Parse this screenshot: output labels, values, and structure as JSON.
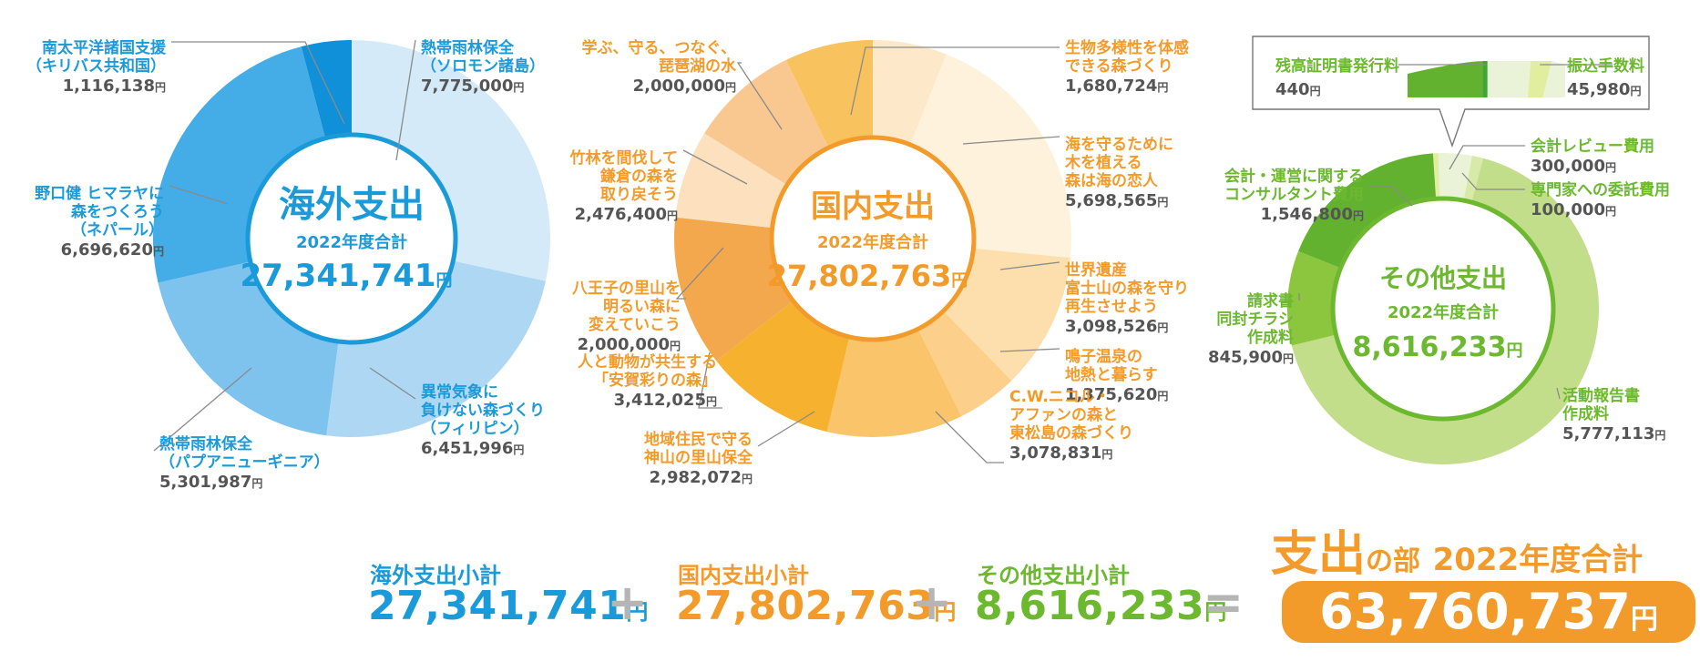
{
  "summary": {
    "overseas_label": "海外支出小計",
    "overseas_value": "27,341,741",
    "domestic_label": "国内支出小計",
    "domestic_value": "27,802,763",
    "other_label": "その他支出小計",
    "other_value": "8,616,233",
    "yen": "円",
    "plus": "+",
    "equals": "=",
    "total_title_main": "支出",
    "total_title_particle": "の部",
    "total_title_year": "2022年度合計",
    "total_value": "63,760,737"
  },
  "colors": {
    "overseas": "#1a9ad9",
    "domestic": "#f29b2a",
    "other": "#6cb82f",
    "value_text": "#555555"
  },
  "chart_data": [
    {
      "type": "pie",
      "title": "海外支出",
      "subtitle": "2022年度合計",
      "total": "27,341,741",
      "unit": "円",
      "slices": [
        {
          "label": [
            "熱帯雨林保全",
            "（ソロモン諸島）"
          ],
          "value": 7775000,
          "display": "7,775,000",
          "color": "#d4eaf8"
        },
        {
          "label": [
            "異常気象に",
            "負けない森づくり",
            "（フィリピン）"
          ],
          "value": 6451996,
          "display": "6,451,996",
          "color": "#aed7f3"
        },
        {
          "label": [
            "熱帯雨林保全",
            "（パプアニューギニア）"
          ],
          "value": 5301987,
          "display": "5,301,987",
          "color": "#7dc3ee"
        },
        {
          "label": [
            "野口健 ヒマラヤに",
            "森をつくろう",
            "（ネパール）"
          ],
          "value": 6696620,
          "display": "6,696,620",
          "color": "#44ace6"
        },
        {
          "label": [
            "南太平洋諸国支援",
            "（キリバス共和国）"
          ],
          "value": 1116138,
          "display": "1,116,138",
          "color": "#1190da"
        }
      ]
    },
    {
      "type": "pie",
      "title": "国内支出",
      "subtitle": "2022年度合計",
      "total": "27,802,763",
      "unit": "円",
      "slices": [
        {
          "label": [
            "生物多様性を体感",
            "できる森づくり"
          ],
          "value": 1680724,
          "display": "1,680,724",
          "color": "#fde9c9"
        },
        {
          "label": [
            "海を守るために",
            "木を植える",
            "森は海の恋人"
          ],
          "value": 5698565,
          "display": "5,698,565",
          "color": "#fef2dc"
        },
        {
          "label": [
            "世界遺産",
            "富士山の森を守り",
            "再生させよう"
          ],
          "value": 3098526,
          "display": "3,098,526",
          "color": "#fddfad"
        },
        {
          "label": [
            "鳴子温泉の",
            "地熱と暮らす"
          ],
          "value": 1375620,
          "display": "1,375,620",
          "color": "#fcd08a"
        },
        {
          "label": [
            "C.W.ニコル・",
            "アファンの森と",
            "東松島の森づくり"
          ],
          "value": 3078831,
          "display": "3,078,831",
          "color": "#f9c46a"
        },
        {
          "label": [
            "地域住民で守る",
            "神山の里山保全"
          ],
          "value": 2982072,
          "display": "2,982,072",
          "color": "#f6b22e"
        },
        {
          "label": [
            "人と動物が共生する",
            "「安賀彩りの森」"
          ],
          "value": 3412025,
          "display": "3,412,025",
          "color": "#f4a84e"
        },
        {
          "label": [
            "八王子の里山を",
            "明るい森に",
            "変えていこう"
          ],
          "value": 2000000,
          "display": "2,000,000",
          "color": "#fde0bd"
        },
        {
          "label": [
            "竹林を間伐して",
            "鎌倉の森を",
            "取り戻そう"
          ],
          "value": 2476400,
          "display": "2,476,400",
          "color": "#f9c890"
        },
        {
          "label": [
            "学ぶ、守る、つなぐ、",
            "琵琶湖の水"
          ],
          "value": 2000000,
          "display": "2,000,000",
          "color": "#f8c25f"
        }
      ]
    },
    {
      "type": "pie",
      "title": "その他支出",
      "subtitle": "2022年度合計",
      "total": "8,616,233",
      "unit": "円",
      "slices": [
        {
          "label": [
            "振込手数料"
          ],
          "value": 45980,
          "display": "45,980",
          "color": "#e2ee9f"
        },
        {
          "label": [
            "残高証明書発行料"
          ],
          "value": 440,
          "display": "440",
          "color": "#3fa535"
        },
        {
          "label": [
            "会計レビュー費用"
          ],
          "value": 300000,
          "display": "300,000",
          "color": "#eaf3d8"
        },
        {
          "label": [
            "専門家への委託費用"
          ],
          "value": 100000,
          "display": "100,000",
          "color": "#d8eaaa"
        },
        {
          "label": [
            "活動報告書",
            "作成料"
          ],
          "value": 5777113,
          "display": "5,777,113",
          "color": "#c2de8a"
        },
        {
          "label": [
            "請求書",
            "同封チラシ",
            "作成料"
          ],
          "value": 845900,
          "display": "845,900",
          "color": "#8cc63f"
        },
        {
          "label": [
            "会計・運営に関する",
            "コンサルタント費用"
          ],
          "value": 1546800,
          "display": "1,546,800",
          "color": "#62b22f"
        }
      ]
    }
  ]
}
